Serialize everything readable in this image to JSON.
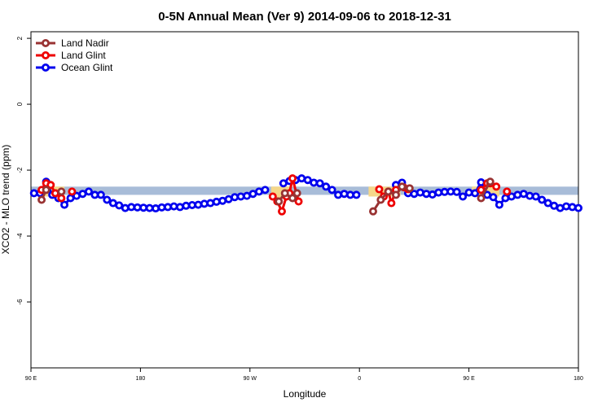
{
  "chart_data": {
    "type": "line",
    "title": "0-5N Annual Mean (Ver 9)   2014-09-06 to 2018-12-31",
    "xlabel": "Longitude",
    "ylabel": "XCO2 - MLO trend (ppm)",
    "xlim": [
      90,
      450
    ],
    "ylim": [
      -8,
      2.2
    ],
    "x_ticks": [
      {
        "value": 90,
        "label": "90 E"
      },
      {
        "value": 162,
        "label": "180"
      },
      {
        "value": 234,
        "label": "90 W"
      },
      {
        "value": 306,
        "label": "0"
      },
      {
        "value": 378,
        "label": "90 E"
      },
      {
        "value": 450,
        "label": "180"
      }
    ],
    "y_ticks": [
      {
        "value": 2,
        "label": "2"
      },
      {
        "value": 0,
        "label": "0"
      },
      {
        "value": -2,
        "label": "-2"
      },
      {
        "value": -4,
        "label": "-4"
      },
      {
        "value": -6,
        "label": "-6"
      }
    ],
    "legend_position": "top-left",
    "band": {
      "y_low": -2.75,
      "y_high": -2.5,
      "color": "#a8bcd8"
    },
    "highlights": [
      {
        "x_start": 95,
        "x_end": 112,
        "y_low": -2.8,
        "y_high": -2.5,
        "color": "#f5d78a"
      },
      {
        "x_start": 248,
        "x_end": 260,
        "y_low": -2.85,
        "y_high": -2.5,
        "color": "#f5d78a"
      },
      {
        "x_start": 312,
        "x_end": 333,
        "y_low": -2.8,
        "y_high": -2.5,
        "color": "#f5d78a"
      },
      {
        "x_start": 380,
        "x_end": 398,
        "y_low": -2.8,
        "y_high": -2.5,
        "color": "#f5d78a"
      }
    ],
    "series": [
      {
        "name": "Ocean Glint",
        "color": "#0000ee",
        "x": [
          92,
          96,
          100,
          104,
          108,
          112,
          116,
          120,
          124,
          128,
          132,
          136,
          140,
          144,
          148,
          152,
          156,
          160,
          164,
          168,
          172,
          176,
          180,
          184,
          188,
          192,
          196,
          200,
          204,
          208,
          212,
          216,
          220,
          224,
          228,
          232,
          236,
          240,
          244,
          256,
          260,
          264,
          268,
          272,
          276,
          280,
          284,
          288,
          292,
          296,
          300,
          304,
          330,
          334,
          338,
          342,
          346,
          350,
          354,
          358,
          362,
          366,
          370,
          374,
          378,
          382,
          386,
          390,
          394,
          398,
          402,
          406,
          410,
          414,
          418,
          422,
          426,
          430,
          434,
          438,
          442,
          446,
          450
        ],
        "y": [
          -2.7,
          -2.7,
          -2.35,
          -2.75,
          -2.85,
          -3.05,
          -2.85,
          -2.78,
          -2.72,
          -2.65,
          -2.75,
          -2.75,
          -2.9,
          -3.0,
          -3.07,
          -3.15,
          -3.12,
          -3.13,
          -3.14,
          -3.15,
          -3.16,
          -3.13,
          -3.12,
          -3.1,
          -3.12,
          -3.08,
          -3.06,
          -3.05,
          -3.02,
          -3.0,
          -2.96,
          -2.93,
          -2.88,
          -2.82,
          -2.8,
          -2.78,
          -2.72,
          -2.65,
          -2.6,
          -2.4,
          -2.33,
          -2.3,
          -2.25,
          -2.3,
          -2.38,
          -2.4,
          -2.5,
          -2.6,
          -2.75,
          -2.72,
          -2.75,
          -2.75,
          -2.45,
          -2.38,
          -2.7,
          -2.72,
          -2.68,
          -2.72,
          -2.74,
          -2.68,
          -2.66,
          -2.65,
          -2.66,
          -2.8,
          -2.68,
          -2.7,
          -2.37,
          -2.75,
          -2.82,
          -3.05,
          -2.85,
          -2.8,
          -2.75,
          -2.72,
          -2.78,
          -2.8,
          -2.9,
          -3.0,
          -3.08,
          -3.15,
          -3.1,
          -3.12,
          -3.15
        ]
      },
      {
        "name": "Land Glint",
        "color": "#ee0000",
        "x": [
          97,
          100,
          103,
          106,
          110,
          117,
          249,
          252,
          255,
          258,
          260,
          262,
          266,
          319,
          322,
          325,
          327,
          330,
          335,
          338,
          386,
          390,
          392,
          396,
          403
        ],
        "y": [
          -2.6,
          -2.4,
          -2.45,
          -2.7,
          -2.85,
          -2.65,
          -2.8,
          -2.95,
          -3.25,
          -2.8,
          -2.7,
          -2.25,
          -2.95,
          -2.58,
          -2.8,
          -2.65,
          -3.0,
          -2.6,
          -2.52,
          -2.58,
          -2.6,
          -2.4,
          -2.4,
          -2.5,
          -2.65
        ]
      },
      {
        "name": "Land Nadir",
        "color": "#993333",
        "x": [
          97,
          100,
          110,
          253,
          257,
          262,
          265,
          315,
          320,
          325,
          330,
          334,
          339,
          386,
          392
        ],
        "y": [
          -2.9,
          -2.6,
          -2.65,
          -2.95,
          -2.7,
          -2.85,
          -2.7,
          -3.25,
          -2.9,
          -2.65,
          -2.75,
          -2.5,
          -2.55,
          -2.85,
          -2.35
        ]
      }
    ]
  }
}
